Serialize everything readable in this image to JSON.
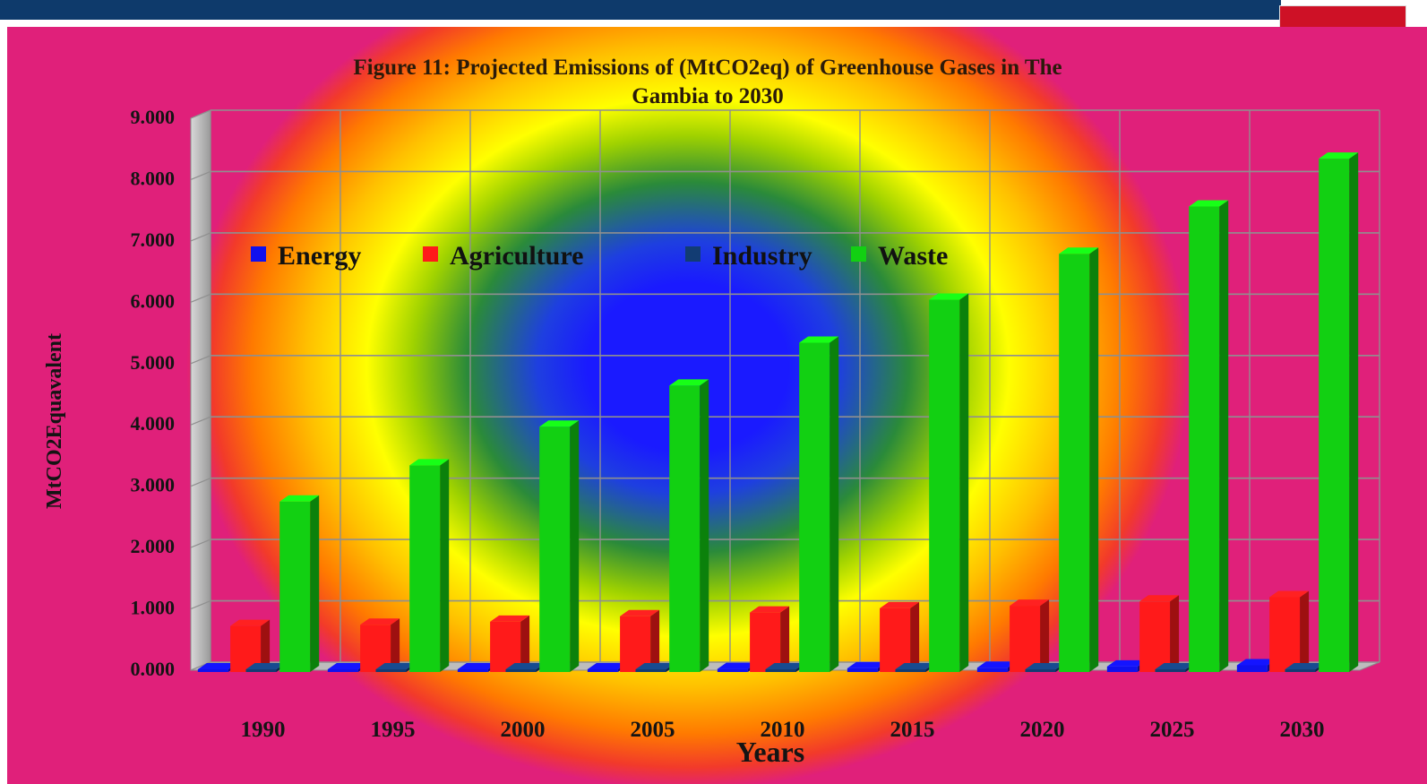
{
  "chart_data": {
    "type": "bar",
    "title_line1": "Figure 11: Projected Emissions of (MtCO2eq) of Greenhouse Gases in The",
    "title_line2": "Gambia to 2030",
    "xlabel": "Years",
    "ylabel": "MtCO2Equavalent",
    "ylim": [
      0,
      9
    ],
    "y_ticks": [
      "0.000",
      "1.000",
      "2.000",
      "3.000",
      "4.000",
      "5.000",
      "6.000",
      "7.000",
      "8.000",
      "9.000"
    ],
    "categories": [
      "1990",
      "1995",
      "2000",
      "2005",
      "2010",
      "2015",
      "2020",
      "2025",
      "2030"
    ],
    "grid": true,
    "legend_position": "upper-left",
    "series": [
      {
        "name": "Energy",
        "color": "#1010ee",
        "values": [
          0.02,
          0.03,
          0.03,
          0.04,
          0.05,
          0.06,
          0.07,
          0.09,
          0.11
        ]
      },
      {
        "name": "Agriculture",
        "color": "#ff1a1a",
        "values": [
          0.75,
          0.77,
          0.82,
          0.91,
          0.97,
          1.04,
          1.08,
          1.15,
          1.22
        ]
      },
      {
        "name": "Industry",
        "color": "#123c73",
        "values": [
          0.0,
          0.0,
          0.0,
          0.0,
          0.0,
          0.0,
          0.0,
          0.0,
          0.0
        ]
      },
      {
        "name": "Waste",
        "color": "#12d012",
        "values": [
          2.78,
          3.37,
          4.0,
          4.67,
          5.37,
          6.07,
          6.82,
          7.59,
          8.37
        ]
      }
    ]
  },
  "decor": {
    "flag_colors": [
      "#ce1126",
      "#ffffff",
      "#0c1c8c",
      "#ffffff",
      "#3a7728"
    ],
    "flag_icon": "gambia-flag-icon"
  }
}
